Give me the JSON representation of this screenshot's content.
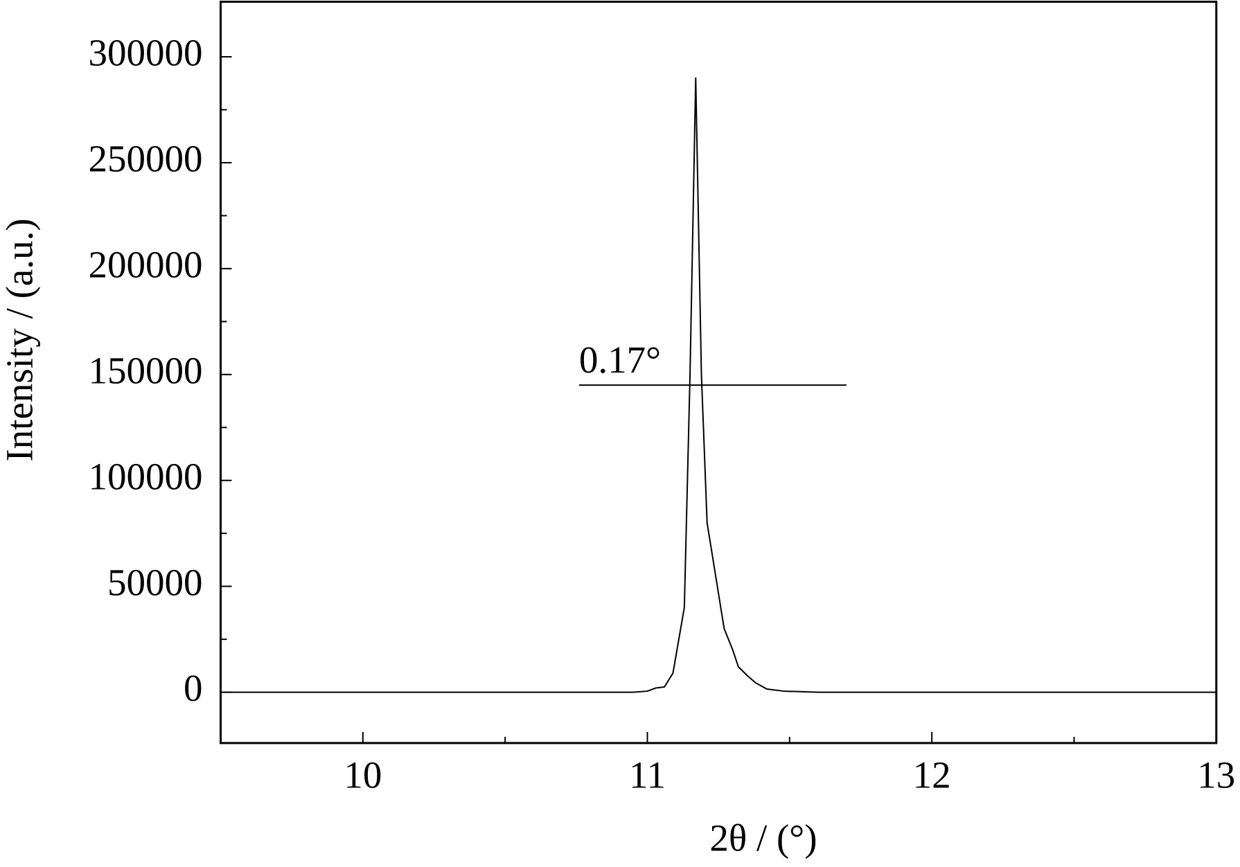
{
  "chart_data": {
    "type": "line",
    "x_label": "2θ / (°)",
    "y_label": "Intensity / (a.u.)",
    "x": [
      9.5,
      9.8,
      10.0,
      10.5,
      10.7,
      10.95,
      11.0,
      11.03,
      11.06,
      11.09,
      11.13,
      11.15,
      11.17,
      11.19,
      11.21,
      11.24,
      11.27,
      11.3,
      11.32,
      11.35,
      11.38,
      11.42,
      11.48,
      11.6,
      12.0,
      13.0
    ],
    "series": [
      {
        "color": "#000000",
        "values": [
          0,
          0,
          0,
          0,
          0,
          0,
          500,
          2000,
          2500,
          9000,
          40000,
          150000,
          290000,
          150000,
          80000,
          55000,
          30000,
          20000,
          12000,
          8000,
          4500,
          1500,
          500,
          0,
          0,
          0
        ]
      }
    ],
    "xlim": [
      9.5,
      13
    ],
    "ylim": [
      -24000,
      326000
    ],
    "xticks": [
      10,
      11,
      12,
      13
    ],
    "x_minor_ticks": [
      10.5,
      11.5,
      12.5
    ],
    "yticks": [
      0,
      50000,
      100000,
      150000,
      200000,
      250000,
      300000
    ],
    "y_minor_ticks": [
      25000,
      75000,
      125000,
      175000,
      225000,
      275000
    ],
    "annotation": {
      "text": "0.17°",
      "x": [
        10.76,
        11.7
      ],
      "y": 145000
    },
    "grid": false
  }
}
